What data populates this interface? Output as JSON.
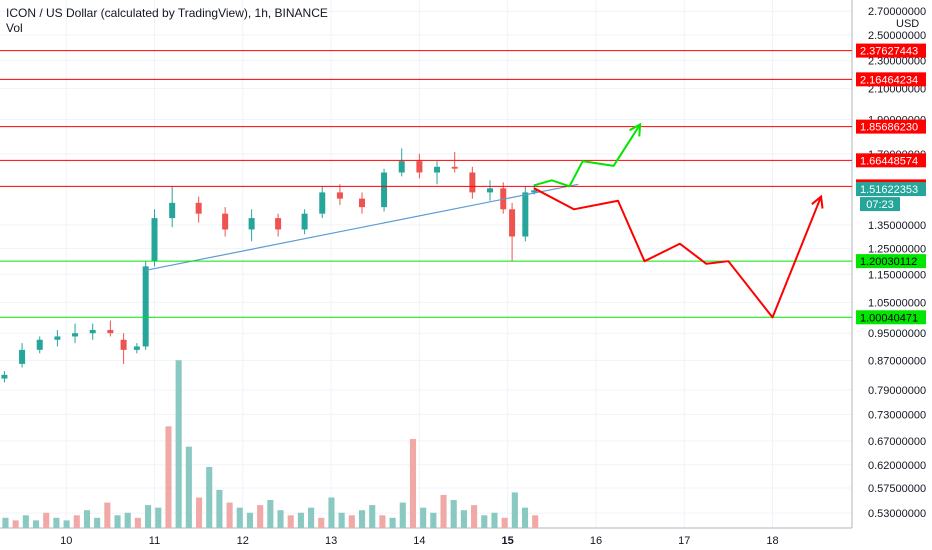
{
  "header": {
    "title": "ICON / US Dollar (calculated by TradingView), 1h, BINANCE",
    "indicator": "Vol"
  },
  "colors": {
    "up": "#26a69a",
    "down": "#ef5350",
    "vol_up": "#89c9c2",
    "vol_down": "#f0a9a7",
    "resistance": "#ff0000",
    "support": "#00e600",
    "trendline": "#5b9bd5",
    "bull_path": "#00e600",
    "bear_path": "#ff0000",
    "axis_text": "#131722",
    "grid": "#f0f3fa"
  },
  "chart_data": {
    "type": "candlestick",
    "symbol": "ICON / US Dollar (calculated by TradingView)",
    "interval": "1h",
    "exchange": "BINANCE",
    "currency": "USD",
    "price_axis": {
      "unit": "USD",
      "scale": "log",
      "range": [
        0.505,
        2.8
      ],
      "ticks": [
        "2.70000000",
        "2.50000000",
        "2.30000000",
        "2.10000000",
        "1.90000000",
        "1.70000000",
        "1.35000000",
        "1.25000000",
        "1.15000000",
        "1.05000000",
        "0.95000000",
        "0.87000000",
        "0.79000000",
        "0.73000000",
        "0.67000000",
        "0.62000000",
        "0.57500000",
        "0.53000000"
      ],
      "price_range": [
        0.505,
        2.8
      ],
      "volume_axis_band": [
        0.505,
        0.88
      ]
    },
    "time_axis": {
      "ticks": [
        "10",
        "11",
        "12",
        "13",
        "14",
        "15",
        "16",
        "17",
        "18"
      ],
      "range_days": [
        9.25,
        18.9
      ]
    },
    "candles_sampled": [
      {
        "day": 9.3,
        "o": 0.82,
        "h": 0.84,
        "l": 0.81,
        "c": 0.83
      },
      {
        "day": 9.5,
        "o": 0.86,
        "h": 0.92,
        "l": 0.85,
        "c": 0.9
      },
      {
        "day": 9.7,
        "o": 0.9,
        "h": 0.94,
        "l": 0.89,
        "c": 0.93
      },
      {
        "day": 9.9,
        "o": 0.93,
        "h": 0.96,
        "l": 0.91,
        "c": 0.94
      },
      {
        "day": 10.1,
        "o": 0.94,
        "h": 0.98,
        "l": 0.92,
        "c": 0.95
      },
      {
        "day": 10.3,
        "o": 0.95,
        "h": 0.98,
        "l": 0.93,
        "c": 0.96
      },
      {
        "day": 10.5,
        "o": 0.96,
        "h": 0.99,
        "l": 0.94,
        "c": 0.95
      },
      {
        "day": 10.65,
        "o": 0.93,
        "h": 0.95,
        "l": 0.86,
        "c": 0.9
      },
      {
        "day": 10.8,
        "o": 0.9,
        "h": 0.92,
        "l": 0.89,
        "c": 0.91
      },
      {
        "day": 10.9,
        "o": 0.91,
        "h": 1.2,
        "l": 0.9,
        "c": 1.18
      },
      {
        "day": 11.0,
        "o": 1.2,
        "h": 1.42,
        "l": 1.18,
        "c": 1.38
      },
      {
        "day": 11.2,
        "o": 1.38,
        "h": 1.53,
        "l": 1.34,
        "c": 1.45
      },
      {
        "day": 11.5,
        "o": 1.45,
        "h": 1.48,
        "l": 1.36,
        "c": 1.4
      },
      {
        "day": 11.8,
        "o": 1.4,
        "h": 1.43,
        "l": 1.3,
        "c": 1.33
      },
      {
        "day": 12.1,
        "o": 1.33,
        "h": 1.42,
        "l": 1.28,
        "c": 1.38
      },
      {
        "day": 12.4,
        "o": 1.38,
        "h": 1.4,
        "l": 1.3,
        "c": 1.33
      },
      {
        "day": 12.7,
        "o": 1.33,
        "h": 1.42,
        "l": 1.31,
        "c": 1.4
      },
      {
        "day": 12.9,
        "o": 1.4,
        "h": 1.53,
        "l": 1.38,
        "c": 1.5
      },
      {
        "day": 13.1,
        "o": 1.5,
        "h": 1.54,
        "l": 1.44,
        "c": 1.47
      },
      {
        "day": 13.35,
        "o": 1.47,
        "h": 1.5,
        "l": 1.4,
        "c": 1.43
      },
      {
        "day": 13.6,
        "o": 1.43,
        "h": 1.62,
        "l": 1.41,
        "c": 1.6
      },
      {
        "day": 13.8,
        "o": 1.6,
        "h": 1.73,
        "l": 1.58,
        "c": 1.66
      },
      {
        "day": 14.0,
        "o": 1.66,
        "h": 1.7,
        "l": 1.57,
        "c": 1.6
      },
      {
        "day": 14.2,
        "o": 1.6,
        "h": 1.66,
        "l": 1.54,
        "c": 1.63
      },
      {
        "day": 14.4,
        "o": 1.63,
        "h": 1.71,
        "l": 1.6,
        "c": 1.62
      },
      {
        "day": 14.6,
        "o": 1.6,
        "h": 1.63,
        "l": 1.47,
        "c": 1.5
      },
      {
        "day": 14.8,
        "o": 1.5,
        "h": 1.56,
        "l": 1.46,
        "c": 1.52
      },
      {
        "day": 14.95,
        "o": 1.52,
        "h": 1.55,
        "l": 1.4,
        "c": 1.42
      },
      {
        "day": 15.05,
        "o": 1.42,
        "h": 1.45,
        "l": 1.2,
        "c": 1.3
      },
      {
        "day": 15.2,
        "o": 1.3,
        "h": 1.53,
        "l": 1.28,
        "c": 1.5
      },
      {
        "day": 15.3,
        "o": 1.5,
        "h": 1.54,
        "l": 1.49,
        "c": 1.51
      }
    ],
    "resistance_levels": [
      2.37627443,
      2.16464234,
      1.8568623,
      1.66448574,
      1.52960089
    ],
    "support_levels": [
      1.20030112,
      1.00040471
    ],
    "level_labels": [
      "2.37627443",
      "2.16464234",
      "1.85686230",
      "1.66448574",
      "1.52960089",
      "1.20030112",
      "1.00040471"
    ],
    "current_price": {
      "value": 1.51622353,
      "label": "1.51622353",
      "countdown": "07:23"
    },
    "trendline": [
      {
        "day": 10.9,
        "price": 1.165
      },
      {
        "day": 15.8,
        "price": 1.54
      }
    ],
    "bull_projection": [
      {
        "day": 15.3,
        "price": 1.535
      },
      {
        "day": 15.5,
        "price": 1.56
      },
      {
        "day": 15.7,
        "price": 1.53
      },
      {
        "day": 15.85,
        "price": 1.66
      },
      {
        "day": 16.2,
        "price": 1.635
      },
      {
        "day": 16.5,
        "price": 1.87
      }
    ],
    "bear_projection": [
      {
        "day": 15.3,
        "price": 1.52
      },
      {
        "day": 15.75,
        "price": 1.42
      },
      {
        "day": 16.25,
        "price": 1.46
      },
      {
        "day": 16.55,
        "price": 1.2
      },
      {
        "day": 16.95,
        "price": 1.27
      },
      {
        "day": 17.25,
        "price": 1.19
      },
      {
        "day": 17.5,
        "price": 1.2
      },
      {
        "day": 18.0,
        "price": 1.0
      },
      {
        "day": 18.55,
        "price": 1.48
      }
    ],
    "volume_bars_sampled": [
      0.4,
      0.3,
      0.5,
      0.3,
      0.6,
      0.4,
      0.3,
      0.5,
      0.7,
      0.4,
      1.0,
      0.5,
      0.6,
      0.4,
      0.9,
      0.8,
      4.0,
      6.6,
      3.2,
      1.2,
      2.4,
      1.5,
      1.0,
      0.8,
      0.6,
      0.9,
      1.1,
      0.7,
      0.5,
      0.6,
      0.8,
      0.4,
      1.2,
      0.6,
      0.5,
      0.7,
      0.9,
      0.5,
      0.4,
      1.0,
      3.5,
      0.8,
      0.6,
      1.3,
      1.1,
      0.7,
      0.9,
      0.5,
      0.6,
      0.4,
      1.4,
      0.8,
      0.5
    ]
  }
}
